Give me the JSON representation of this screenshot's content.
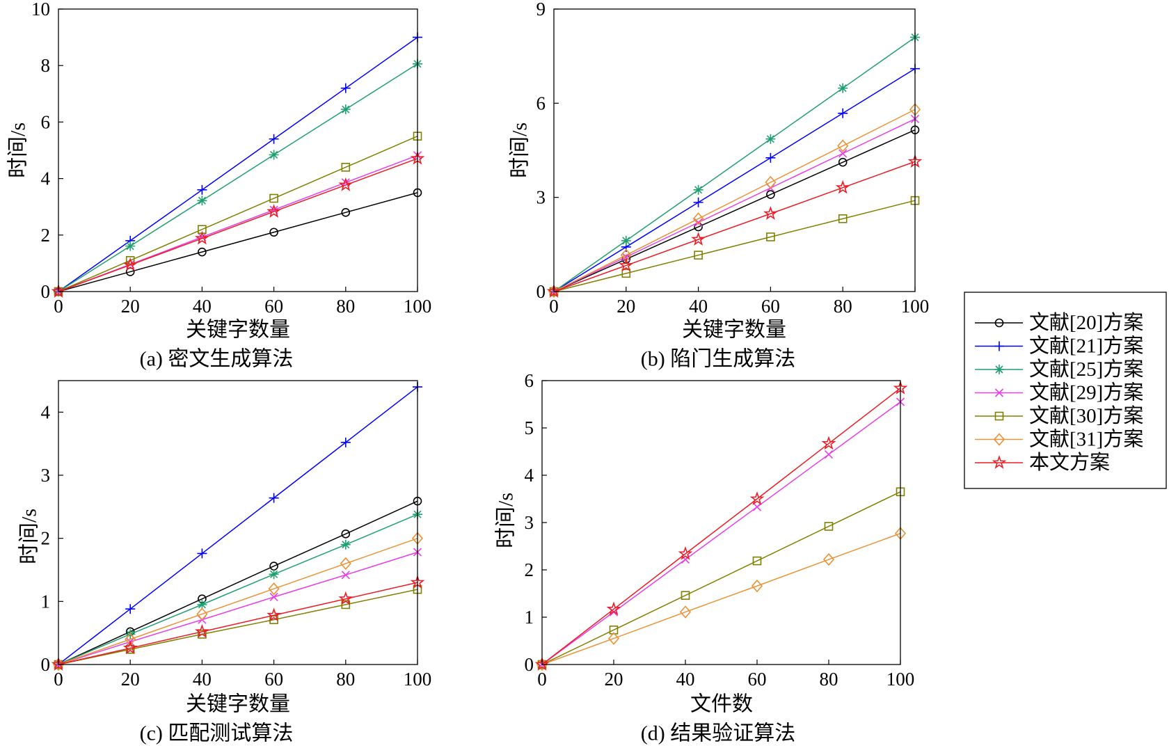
{
  "legend": {
    "placement": "right",
    "entries": [
      {
        "label": "文献[20]方案",
        "color": "#000000",
        "marker": "circle"
      },
      {
        "label": "文献[21]方案",
        "color": "#0000ff",
        "marker": "plus"
      },
      {
        "label": "文献[25]方案",
        "color": "#1fa070",
        "marker": "asterisk"
      },
      {
        "label": "文献[29]方案",
        "color": "#e83de8",
        "marker": "x"
      },
      {
        "label": "文献[30]方案",
        "color": "#808000",
        "marker": "square"
      },
      {
        "label": "文献[31]方案",
        "color": "#eb9234",
        "marker": "diamond"
      },
      {
        "label": "本文方案",
        "color": "#ed1c24",
        "marker": "star"
      }
    ]
  },
  "chart_data": [
    {
      "type": "line",
      "title": "(a) 密文生成算法",
      "xlabel": "关键字数量",
      "ylabel": "时间/s",
      "x": [
        0,
        20,
        40,
        60,
        80,
        100
      ],
      "xlim": [
        0,
        100
      ],
      "ylim": [
        0,
        10
      ],
      "xticks": [
        0,
        20,
        40,
        60,
        80,
        100
      ],
      "yticks": [
        0,
        2,
        4,
        6,
        8,
        10
      ],
      "grid": false,
      "series": [
        {
          "name": "文献[20]方案",
          "values": [
            0,
            0.7,
            1.4,
            2.1,
            2.8,
            3.5
          ]
        },
        {
          "name": "文献[21]方案",
          "values": [
            0,
            1.8,
            3.6,
            5.4,
            7.2,
            9.0
          ]
        },
        {
          "name": "文献[25]方案",
          "values": [
            0,
            1.61,
            3.22,
            4.84,
            6.45,
            8.06
          ]
        },
        {
          "name": "文献[29]方案",
          "values": [
            0,
            0.96,
            1.93,
            2.89,
            3.86,
            4.82
          ]
        },
        {
          "name": "文献[30]方案",
          "values": [
            0,
            1.1,
            2.2,
            3.3,
            4.4,
            5.5
          ]
        },
        {
          "name": "本文方案",
          "values": [
            0,
            0.94,
            1.88,
            2.83,
            3.77,
            4.71
          ]
        }
      ]
    },
    {
      "type": "line",
      "title": "(b) 陷门生成算法",
      "xlabel": "关键字数量",
      "ylabel": "时间/s",
      "x": [
        0,
        20,
        40,
        60,
        80,
        100
      ],
      "xlim": [
        0,
        100
      ],
      "ylim": [
        0,
        9
      ],
      "xticks": [
        0,
        20,
        40,
        60,
        80,
        100
      ],
      "yticks": [
        0,
        3,
        6,
        9
      ],
      "grid": false,
      "series": [
        {
          "name": "文献[20]方案",
          "values": [
            0,
            1.03,
            2.06,
            3.09,
            4.12,
            5.15
          ]
        },
        {
          "name": "文献[21]方案",
          "values": [
            0,
            1.42,
            2.84,
            4.26,
            5.68,
            7.1
          ]
        },
        {
          "name": "文献[25]方案",
          "values": [
            0,
            1.62,
            3.24,
            4.86,
            6.48,
            8.1
          ]
        },
        {
          "name": "文献[29]方案",
          "values": [
            0,
            1.1,
            2.2,
            3.3,
            4.4,
            5.5
          ]
        },
        {
          "name": "文献[30]方案",
          "values": [
            0,
            0.58,
            1.16,
            1.74,
            2.32,
            2.9
          ]
        },
        {
          "name": "文献[31]方案",
          "values": [
            0,
            1.16,
            2.32,
            3.48,
            4.64,
            5.8
          ]
        },
        {
          "name": "本文方案",
          "values": [
            0,
            0.83,
            1.66,
            2.48,
            3.31,
            4.14
          ]
        }
      ]
    },
    {
      "type": "line",
      "title": "(c) 匹配测试算法",
      "xlabel": "关键字数量",
      "ylabel": "时间/s",
      "x": [
        0,
        20,
        40,
        60,
        80,
        100
      ],
      "xlim": [
        0,
        100
      ],
      "ylim": [
        0,
        4.5
      ],
      "xticks": [
        0,
        20,
        40,
        60,
        80,
        100
      ],
      "yticks": [
        0,
        1,
        2,
        3,
        4
      ],
      "grid": false,
      "series": [
        {
          "name": "文献[20]方案",
          "values": [
            0,
            0.52,
            1.04,
            1.56,
            2.07,
            2.59
          ]
        },
        {
          "name": "文献[21]方案",
          "values": [
            0,
            0.88,
            1.76,
            2.64,
            3.52,
            4.4
          ]
        },
        {
          "name": "文献[25]方案",
          "values": [
            0,
            0.48,
            0.95,
            1.43,
            1.9,
            2.38
          ]
        },
        {
          "name": "文献[29]方案",
          "values": [
            0,
            0.36,
            0.71,
            1.07,
            1.42,
            1.78
          ]
        },
        {
          "name": "文献[30]方案",
          "values": [
            0,
            0.24,
            0.48,
            0.71,
            0.95,
            1.19
          ]
        },
        {
          "name": "文献[31]方案",
          "values": [
            0,
            0.4,
            0.8,
            1.2,
            1.6,
            2.0
          ]
        },
        {
          "name": "本文方案",
          "values": [
            0,
            0.26,
            0.52,
            0.78,
            1.04,
            1.3
          ]
        }
      ]
    },
    {
      "type": "line",
      "title": "(d) 结果验证算法",
      "xlabel": "文件数",
      "ylabel": "时间/s",
      "x": [
        0,
        20,
        40,
        60,
        80,
        100
      ],
      "xlim": [
        0,
        100
      ],
      "ylim": [
        0,
        6
      ],
      "xticks": [
        0,
        20,
        40,
        60,
        80,
        100
      ],
      "yticks": [
        0,
        1,
        2,
        3,
        4,
        5,
        6
      ],
      "grid": false,
      "series": [
        {
          "name": "文献[29]方案",
          "values": [
            0,
            1.11,
            2.22,
            3.33,
            4.44,
            5.55
          ]
        },
        {
          "name": "文献[30]方案",
          "values": [
            0,
            0.73,
            1.46,
            2.19,
            2.92,
            3.65
          ]
        },
        {
          "name": "文献[31]方案",
          "values": [
            0,
            0.55,
            1.11,
            1.66,
            2.22,
            2.77
          ]
        },
        {
          "name": "本文方案",
          "values": [
            0,
            1.17,
            2.34,
            3.5,
            4.67,
            5.84
          ]
        }
      ]
    }
  ]
}
